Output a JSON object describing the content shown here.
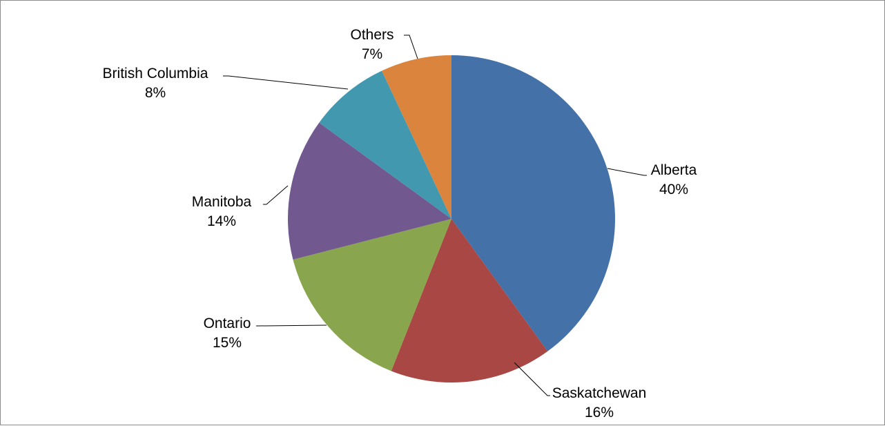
{
  "chart_data": {
    "type": "pie",
    "title": "",
    "start_angle_deg": 0,
    "direction": "clockwise",
    "legend": "none",
    "slices": [
      {
        "name": "Alberta",
        "value": 40,
        "label_pct": "40%",
        "color": "#4472A8"
      },
      {
        "name": "Saskatchewan",
        "value": 16,
        "label_pct": "16%",
        "color": "#A84744"
      },
      {
        "name": "Ontario",
        "value": 15,
        "label_pct": "15%",
        "color": "#89A54E"
      },
      {
        "name": "Manitoba",
        "value": 14,
        "label_pct": "14%",
        "color": "#71588F"
      },
      {
        "name": "British Columbia",
        "value": 8,
        "label_pct": "8%",
        "color": "#4198AF"
      },
      {
        "name": "Others",
        "value": 7,
        "label_pct": "7%",
        "color": "#DB843D"
      }
    ]
  }
}
